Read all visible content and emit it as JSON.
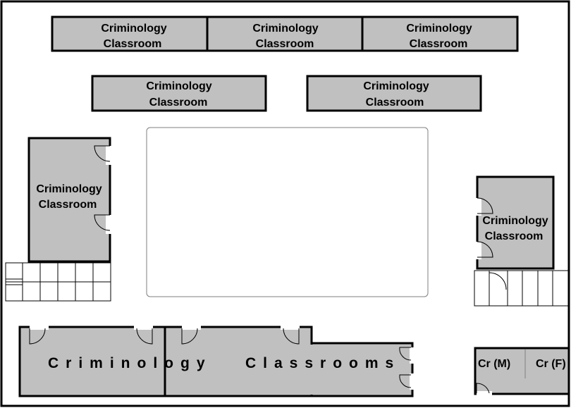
{
  "colors": {
    "room_fill": "#c0c0c0",
    "wall": "#000000",
    "background": "#ffffff"
  },
  "rooms": {
    "top_row_1": {
      "line1": "Criminology",
      "line2": "Classroom"
    },
    "top_row_2": {
      "line1": "Criminology",
      "line2": "Classroom"
    },
    "top_row_3": {
      "line1": "Criminology",
      "line2": "Classroom"
    },
    "second_row_1": {
      "line1": "Criminology",
      "line2": "Classroom"
    },
    "second_row_2": {
      "line1": "Criminology",
      "line2": "Classroom"
    },
    "left_room": {
      "line1": "Criminology",
      "line2": "Classroom"
    },
    "right_room": {
      "line1": "Criminology",
      "line2": "Classroom"
    },
    "bottom_block": {
      "label": "Criminology   Classrooms"
    }
  },
  "comfort_rooms": {
    "male": "Cr (M)",
    "female": "Cr (F)"
  }
}
